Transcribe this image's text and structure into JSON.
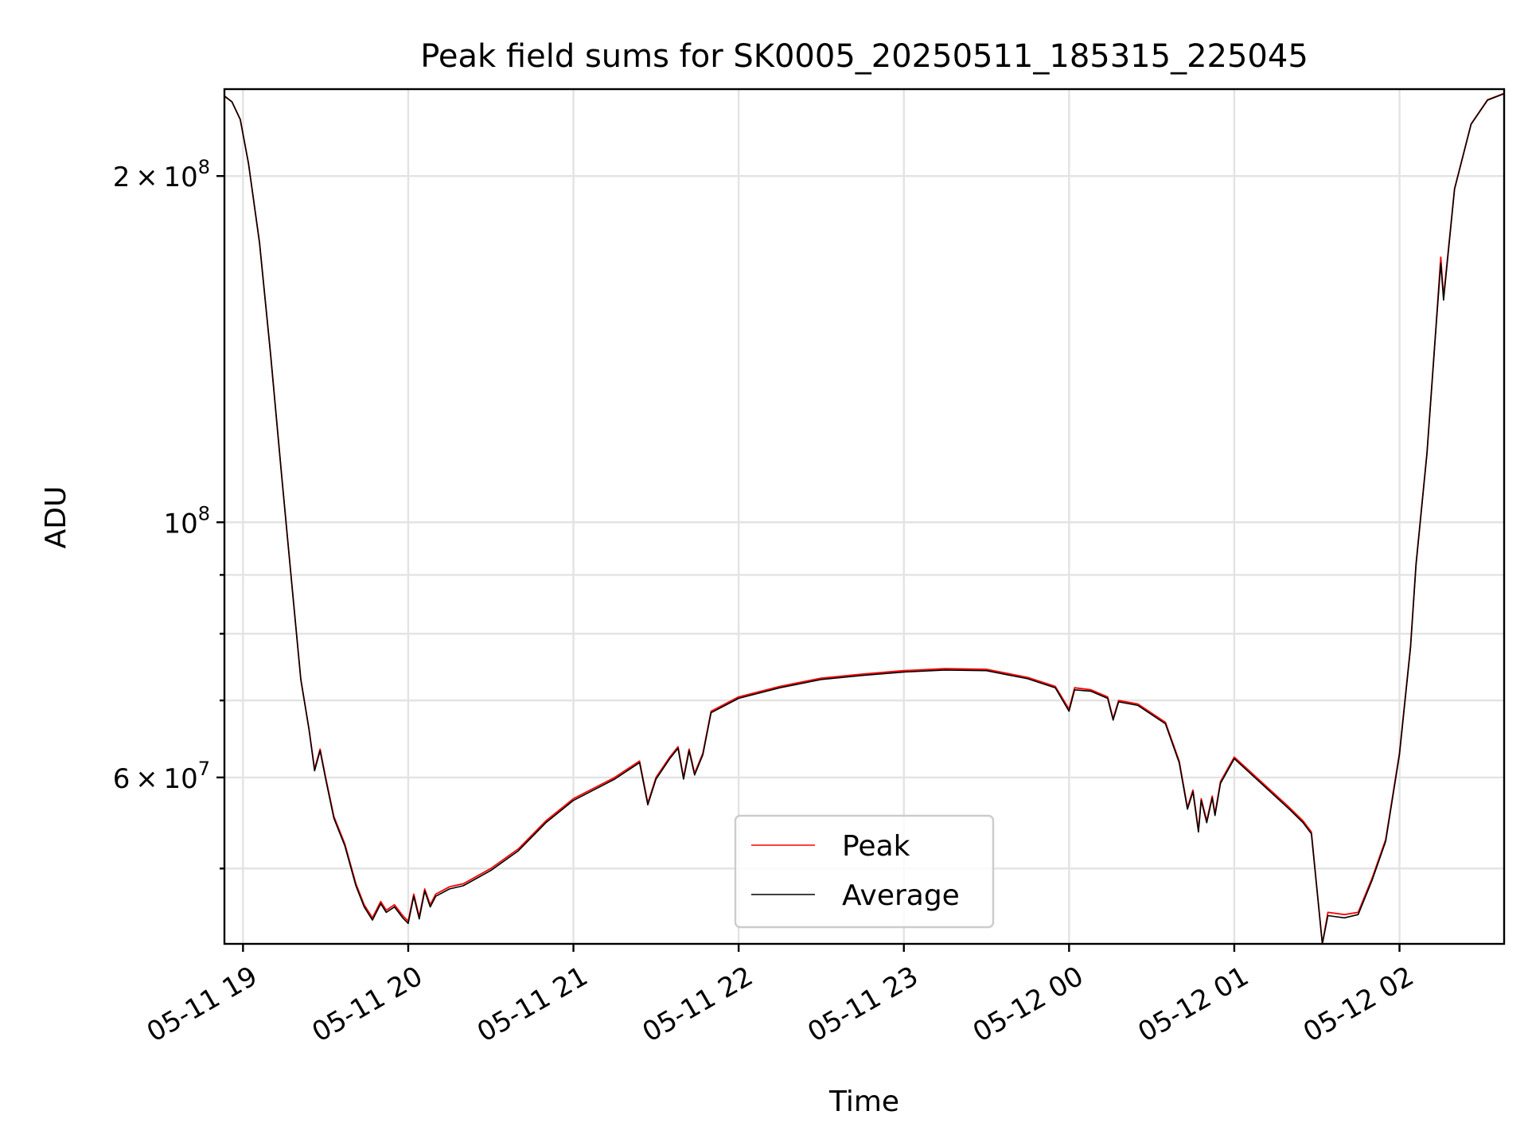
{
  "chart_data": {
    "type": "line",
    "title": "Peak field sums for SK0005_20250511_185315_225045",
    "xlabel": "Time",
    "ylabel": "ADU",
    "yscale": "log",
    "xlim": [
      "2025-05-11 18:53:15",
      "2025-05-12 02:38:00"
    ],
    "ylim": [
      43000000,
      238000000
    ],
    "grid": true,
    "legend_position": "lower-center",
    "x_tick_labels": [
      "05-11 19",
      "05-11 20",
      "05-11 21",
      "05-11 22",
      "05-11 23",
      "05-12 00",
      "05-12 01",
      "05-12 02"
    ],
    "x_ticks": [
      "2025-05-11 19:00",
      "2025-05-11 20:00",
      "2025-05-11 21:00",
      "2025-05-11 22:00",
      "2025-05-11 23:00",
      "2025-05-12 00:00",
      "2025-05-12 01:00",
      "2025-05-12 02:00"
    ],
    "y_ticks": [
      {
        "value": 60000000,
        "mantissa": "6",
        "exponent": "7"
      },
      {
        "value": 100000000,
        "mantissa": "",
        "exponent": "8"
      },
      {
        "value": 200000000,
        "mantissa": "2",
        "exponent": "8"
      }
    ],
    "y_minor_ticks": [
      50000000,
      70000000,
      80000000,
      90000000
    ],
    "series": [
      {
        "name": "Peak",
        "color": "#ff0000",
        "points": [
          [
            "2025-05-11 18:53",
            235000000
          ],
          [
            "2025-05-11 18:56",
            232000000
          ],
          [
            "2025-05-11 18:59",
            224000000
          ],
          [
            "2025-05-11 19:02",
            205000000
          ],
          [
            "2025-05-11 19:06",
            175000000
          ],
          [
            "2025-05-11 19:10",
            140000000
          ],
          [
            "2025-05-11 19:14",
            110000000
          ],
          [
            "2025-05-11 19:18",
            87000000
          ],
          [
            "2025-05-11 19:21",
            73000000
          ],
          [
            "2025-05-11 19:24",
            66000000
          ],
          [
            "2025-05-11 19:26",
            61000000
          ],
          [
            "2025-05-11 19:28",
            63500000
          ],
          [
            "2025-05-11 19:30",
            60000000
          ],
          [
            "2025-05-11 19:33",
            55500000
          ],
          [
            "2025-05-11 19:37",
            52500000
          ],
          [
            "2025-05-11 19:41",
            48500000
          ],
          [
            "2025-05-11 19:44",
            46500000
          ],
          [
            "2025-05-11 19:47",
            45300000
          ],
          [
            "2025-05-11 19:50",
            46800000
          ],
          [
            "2025-05-11 19:52",
            46000000
          ],
          [
            "2025-05-11 19:55",
            46500000
          ],
          [
            "2025-05-11 19:58",
            45500000
          ],
          [
            "2025-05-11 20:00",
            45000000
          ],
          [
            "2025-05-11 20:02",
            47500000
          ],
          [
            "2025-05-11 20:04",
            45400000
          ],
          [
            "2025-05-11 20:06",
            48000000
          ],
          [
            "2025-05-11 20:08",
            46500000
          ],
          [
            "2025-05-11 20:10",
            47500000
          ],
          [
            "2025-05-11 20:15",
            48200000
          ],
          [
            "2025-05-11 20:20",
            48500000
          ],
          [
            "2025-05-11 20:30",
            50000000
          ],
          [
            "2025-05-11 20:40",
            52000000
          ],
          [
            "2025-05-11 20:50",
            55000000
          ],
          [
            "2025-05-11 21:00",
            57500000
          ],
          [
            "2025-05-11 21:15",
            60000000
          ],
          [
            "2025-05-11 21:24",
            62000000
          ],
          [
            "2025-05-11 21:27",
            57000000
          ],
          [
            "2025-05-11 21:30",
            60000000
          ],
          [
            "2025-05-11 21:35",
            62500000
          ],
          [
            "2025-05-11 21:38",
            63800000
          ],
          [
            "2025-05-11 21:40",
            60000000
          ],
          [
            "2025-05-11 21:42",
            63500000
          ],
          [
            "2025-05-11 21:44",
            60500000
          ],
          [
            "2025-05-11 21:47",
            63000000
          ],
          [
            "2025-05-11 21:50",
            68500000
          ],
          [
            "2025-05-11 22:00",
            70500000
          ],
          [
            "2025-05-11 22:15",
            72000000
          ],
          [
            "2025-05-11 22:30",
            73200000
          ],
          [
            "2025-05-11 22:45",
            73800000
          ],
          [
            "2025-05-11 23:00",
            74300000
          ],
          [
            "2025-05-11 23:15",
            74600000
          ],
          [
            "2025-05-11 23:30",
            74500000
          ],
          [
            "2025-05-11 23:45",
            73300000
          ],
          [
            "2025-05-11 23:55",
            72000000
          ],
          [
            "2025-05-12 00:00",
            68800000
          ],
          [
            "2025-05-12 00:02",
            71800000
          ],
          [
            "2025-05-12 00:08",
            71500000
          ],
          [
            "2025-05-12 00:14",
            70500000
          ],
          [
            "2025-05-12 00:16",
            67500000
          ],
          [
            "2025-05-12 00:18",
            70000000
          ],
          [
            "2025-05-12 00:25",
            69500000
          ],
          [
            "2025-05-12 00:35",
            67000000
          ],
          [
            "2025-05-12 00:40",
            62000000
          ],
          [
            "2025-05-12 00:43",
            56500000
          ],
          [
            "2025-05-12 00:45",
            58500000
          ],
          [
            "2025-05-12 00:47",
            54000000
          ],
          [
            "2025-05-12 00:48",
            57500000
          ],
          [
            "2025-05-12 00:50",
            55000000
          ],
          [
            "2025-05-12 00:52",
            57800000
          ],
          [
            "2025-05-12 00:53",
            55800000
          ],
          [
            "2025-05-12 00:55",
            59500000
          ],
          [
            "2025-05-12 01:00",
            62500000
          ],
          [
            "2025-05-12 01:20",
            56500000
          ],
          [
            "2025-05-12 01:25",
            55000000
          ],
          [
            "2025-05-12 01:28",
            53800000
          ],
          [
            "2025-05-12 01:32",
            43000000
          ],
          [
            "2025-05-12 01:34",
            45800000
          ],
          [
            "2025-05-12 01:40",
            45600000
          ],
          [
            "2025-05-12 01:45",
            45800000
          ],
          [
            "2025-05-12 01:50",
            49000000
          ],
          [
            "2025-05-12 01:55",
            53000000
          ],
          [
            "2025-05-12 02:00",
            63000000
          ],
          [
            "2025-05-12 02:04",
            78000000
          ],
          [
            "2025-05-12 02:06",
            92000000
          ],
          [
            "2025-05-12 02:10",
            115000000
          ],
          [
            "2025-05-12 02:13",
            145000000
          ],
          [
            "2025-05-12 02:15",
            170000000
          ],
          [
            "2025-05-12 02:16",
            157000000
          ],
          [
            "2025-05-12 02:20",
            195000000
          ],
          [
            "2025-05-12 02:26",
            222000000
          ],
          [
            "2025-05-12 02:32",
            233000000
          ],
          [
            "2025-05-12 02:38",
            236000000
          ]
        ]
      },
      {
        "name": "Average",
        "color": "#000000",
        "points": [
          [
            "2025-05-11 18:53",
            235000000
          ],
          [
            "2025-05-11 18:56",
            232000000
          ],
          [
            "2025-05-11 18:59",
            224000000
          ],
          [
            "2025-05-11 19:02",
            205000000
          ],
          [
            "2025-05-11 19:06",
            175000000
          ],
          [
            "2025-05-11 19:10",
            140000000
          ],
          [
            "2025-05-11 19:14",
            110000000
          ],
          [
            "2025-05-11 19:18",
            87000000
          ],
          [
            "2025-05-11 19:21",
            73000000
          ],
          [
            "2025-05-11 19:24",
            66000000
          ],
          [
            "2025-05-11 19:26",
            60800000
          ],
          [
            "2025-05-11 19:28",
            63300000
          ],
          [
            "2025-05-11 19:30",
            59800000
          ],
          [
            "2025-05-11 19:33",
            55300000
          ],
          [
            "2025-05-11 19:37",
            52300000
          ],
          [
            "2025-05-11 19:41",
            48300000
          ],
          [
            "2025-05-11 19:44",
            46300000
          ],
          [
            "2025-05-11 19:47",
            45100000
          ],
          [
            "2025-05-11 19:50",
            46600000
          ],
          [
            "2025-05-11 19:52",
            45800000
          ],
          [
            "2025-05-11 19:55",
            46300000
          ],
          [
            "2025-05-11 19:58",
            45300000
          ],
          [
            "2025-05-11 20:00",
            44800000
          ],
          [
            "2025-05-11 20:02",
            47300000
          ],
          [
            "2025-05-11 20:04",
            45200000
          ],
          [
            "2025-05-11 20:06",
            47800000
          ],
          [
            "2025-05-11 20:08",
            46300000
          ],
          [
            "2025-05-11 20:10",
            47300000
          ],
          [
            "2025-05-11 20:15",
            48000000
          ],
          [
            "2025-05-11 20:20",
            48300000
          ],
          [
            "2025-05-11 20:30",
            49800000
          ],
          [
            "2025-05-11 20:40",
            51800000
          ],
          [
            "2025-05-11 20:50",
            54800000
          ],
          [
            "2025-05-11 21:00",
            57300000
          ],
          [
            "2025-05-11 21:15",
            59800000
          ],
          [
            "2025-05-11 21:24",
            61800000
          ],
          [
            "2025-05-11 21:27",
            56800000
          ],
          [
            "2025-05-11 21:30",
            59800000
          ],
          [
            "2025-05-11 21:35",
            62300000
          ],
          [
            "2025-05-11 21:38",
            63600000
          ],
          [
            "2025-05-11 21:40",
            59800000
          ],
          [
            "2025-05-11 21:42",
            63300000
          ],
          [
            "2025-05-11 21:44",
            60300000
          ],
          [
            "2025-05-11 21:47",
            62800000
          ],
          [
            "2025-05-11 21:50",
            68300000
          ],
          [
            "2025-05-11 22:00",
            70300000
          ],
          [
            "2025-05-11 22:15",
            71800000
          ],
          [
            "2025-05-11 22:30",
            73000000
          ],
          [
            "2025-05-11 22:45",
            73600000
          ],
          [
            "2025-05-11 23:00",
            74100000
          ],
          [
            "2025-05-11 23:15",
            74400000
          ],
          [
            "2025-05-11 23:30",
            74300000
          ],
          [
            "2025-05-11 23:45",
            73100000
          ],
          [
            "2025-05-11 23:55",
            71800000
          ],
          [
            "2025-05-12 00:00",
            68500000
          ],
          [
            "2025-05-12 00:02",
            71500000
          ],
          [
            "2025-05-12 00:08",
            71300000
          ],
          [
            "2025-05-12 00:14",
            70300000
          ],
          [
            "2025-05-12 00:16",
            67300000
          ],
          [
            "2025-05-12 00:18",
            69800000
          ],
          [
            "2025-05-12 00:25",
            69300000
          ],
          [
            "2025-05-12 00:35",
            66800000
          ],
          [
            "2025-05-12 00:40",
            61800000
          ],
          [
            "2025-05-12 00:43",
            56300000
          ],
          [
            "2025-05-12 00:45",
            58300000
          ],
          [
            "2025-05-12 00:47",
            53800000
          ],
          [
            "2025-05-12 00:48",
            57300000
          ],
          [
            "2025-05-12 00:50",
            54800000
          ],
          [
            "2025-05-12 00:52",
            57600000
          ],
          [
            "2025-05-12 00:53",
            55600000
          ],
          [
            "2025-05-12 00:55",
            59300000
          ],
          [
            "2025-05-12 01:00",
            62300000
          ],
          [
            "2025-05-12 01:20",
            56300000
          ],
          [
            "2025-05-12 01:25",
            54800000
          ],
          [
            "2025-05-12 01:28",
            53600000
          ],
          [
            "2025-05-12 01:32",
            43000000
          ],
          [
            "2025-05-12 01:34",
            45500000
          ],
          [
            "2025-05-12 01:40",
            45300000
          ],
          [
            "2025-05-12 01:45",
            45600000
          ],
          [
            "2025-05-12 01:50",
            48800000
          ],
          [
            "2025-05-12 01:55",
            52800000
          ],
          [
            "2025-05-12 02:00",
            62800000
          ],
          [
            "2025-05-12 02:04",
            77800000
          ],
          [
            "2025-05-12 02:06",
            91800000
          ],
          [
            "2025-05-12 02:10",
            114800000
          ],
          [
            "2025-05-12 02:13",
            144800000
          ],
          [
            "2025-05-12 02:15",
            168000000
          ],
          [
            "2025-05-12 02:16",
            156000000
          ],
          [
            "2025-05-12 02:20",
            194800000
          ],
          [
            "2025-05-12 02:26",
            221800000
          ],
          [
            "2025-05-12 02:32",
            232800000
          ],
          [
            "2025-05-12 02:38",
            235800000
          ]
        ]
      }
    ]
  }
}
